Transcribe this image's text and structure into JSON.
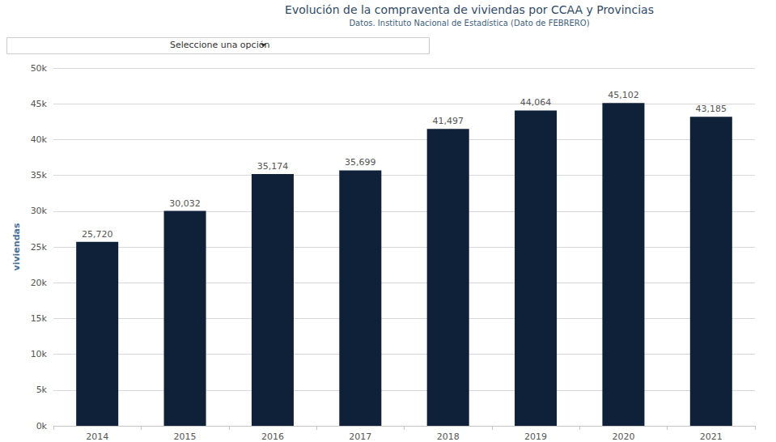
{
  "chart_data": {
    "type": "bar",
    "title": "Evolución de la compraventa de viviendas por CCAA y Provincias",
    "subtitle": "Datos. Instituto Nacional de Estadística (Dato de FEBRERO)",
    "annotations": [
      "Seleccione una opción"
    ],
    "y_label": "viviendas",
    "categories": [
      "2014",
      "2015",
      "2016",
      "2017",
      "2018",
      "2019",
      "2020",
      "2021"
    ],
    "values": [
      25720,
      30032,
      35174,
      35699,
      41497,
      44064,
      45102,
      43185
    ],
    "value_labels": [
      "25,720",
      "30,032",
      "35,174",
      "35,699",
      "41,497",
      "44,064",
      "45,102",
      "43,185"
    ],
    "color": "#0f2139",
    "ylim": [
      0,
      50000
    ],
    "yticks": [
      {
        "value": 0,
        "label": "0k"
      },
      {
        "value": 5000,
        "label": "5k"
      },
      {
        "value": 10000,
        "label": "10k"
      },
      {
        "value": 15000,
        "label": "15k"
      },
      {
        "value": 20000,
        "label": "20k"
      },
      {
        "value": 25000,
        "label": "25k"
      },
      {
        "value": 30000,
        "label": "30k"
      },
      {
        "value": 35000,
        "label": "35k"
      },
      {
        "value": 40000,
        "label": "40k"
      },
      {
        "value": 45000,
        "label": "45k"
      },
      {
        "value": 50000,
        "label": "50k"
      }
    ],
    "grid": true,
    "data_labels": true
  }
}
